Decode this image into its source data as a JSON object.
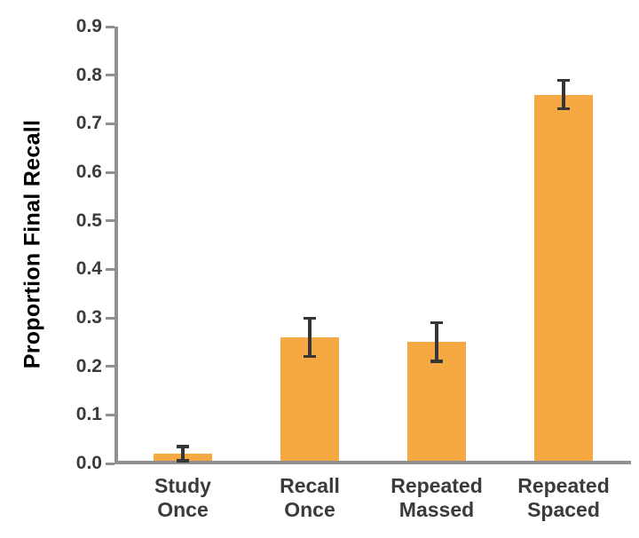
{
  "chart_data": {
    "type": "bar",
    "categories": [
      "Study Once",
      "Recall Once",
      "Repeated Massed",
      "Repeated Spaced"
    ],
    "values": [
      0.02,
      0.26,
      0.25,
      0.76
    ],
    "error_bars": [
      0.015,
      0.04,
      0.04,
      0.03
    ],
    "xlabel": "",
    "ylabel": "Proportion Final Recall",
    "ylim": [
      0,
      0.9
    ],
    "ytick_step": 0.1,
    "ytick_labels": [
      "0.0",
      "0.1",
      "0.2",
      "0.3",
      "0.4",
      "0.5",
      "0.6",
      "0.7",
      "0.8",
      "0.9"
    ],
    "grid": false,
    "legend": "none",
    "colors": {
      "bar": "#F6A943",
      "error_bar": "#363636",
      "axis": "#909090",
      "text": "#3B3B3B"
    }
  }
}
